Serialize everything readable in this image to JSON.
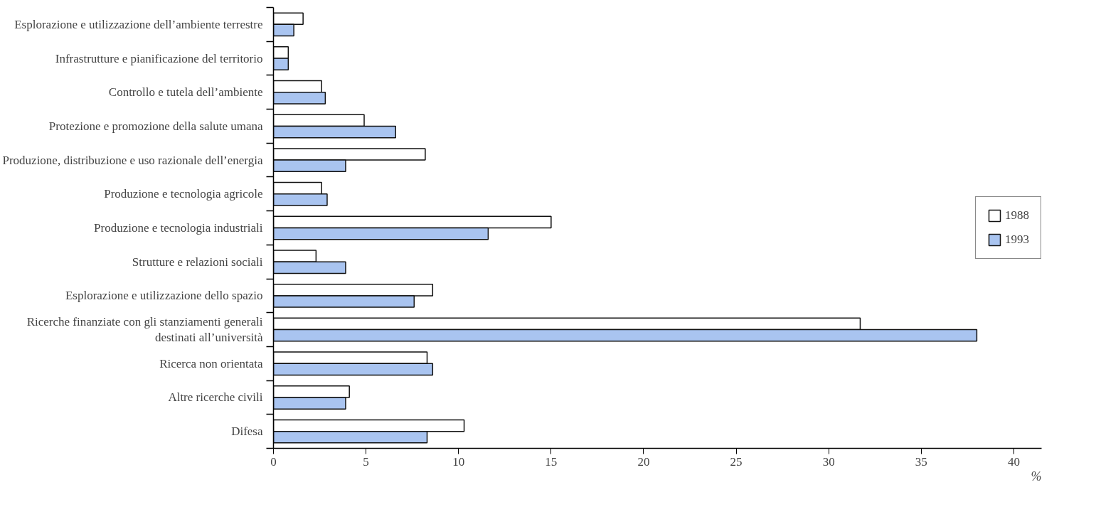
{
  "chart_data": {
    "type": "bar",
    "orientation": "horizontal",
    "xlabel": "%",
    "categories": [
      "Esplorazione e utilizzazione dell’ambiente terrestre",
      "Infrastrutture e pianificazione del territorio",
      "Controllo e tutela dell’ambiente",
      "Protezione e promozione della salute umana",
      "Produzione, distribuzione e uso razionale dell’energia",
      "Produzione e tecnologia agricole",
      "Produzione e tecnologia industriali",
      "Strutture e relazioni sociali",
      "Esplorazione e utilizzazione dello spazio",
      "Ricerche finanziate con gli stanziamenti generali\ndestinati all’università",
      "Ricerca non orientata",
      "Altre ricerche civili",
      "Difesa"
    ],
    "series": [
      {
        "name": "1988",
        "color": "#ffffff",
        "values": [
          1.6,
          0.8,
          2.6,
          4.9,
          8.2,
          2.6,
          15.0,
          2.3,
          8.6,
          31.7,
          8.3,
          4.1,
          10.3
        ]
      },
      {
        "name": "1993",
        "color": "#a9c4f0",
        "values": [
          1.1,
          0.8,
          2.8,
          6.6,
          3.9,
          2.9,
          11.6,
          3.9,
          7.6,
          38.0,
          8.6,
          3.9,
          8.3
        ]
      }
    ],
    "xlim": [
      0,
      41.5
    ],
    "xticks": [
      0,
      5,
      10,
      15,
      20,
      25,
      30,
      35,
      40
    ],
    "legend": "right"
  }
}
